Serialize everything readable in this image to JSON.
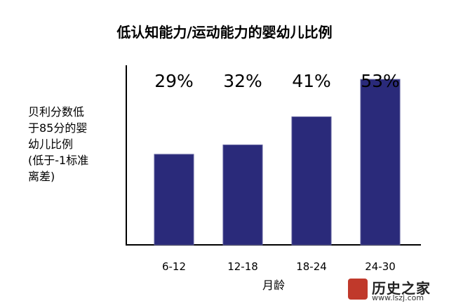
{
  "chart_data": {
    "type": "bar",
    "title": "低认知能力/运动能力的婴幼儿比例",
    "ylabel_lines": [
      "贝利分数低",
      "于85分的婴",
      "幼儿比例",
      "(低于-1标准",
      "离差)"
    ],
    "xlabel": "月龄",
    "categories": [
      "6-12",
      "12-18",
      "18-24",
      "24-30"
    ],
    "values": [
      29,
      32,
      41,
      53
    ],
    "value_labels": [
      "29%",
      "32%",
      "41%",
      "53%"
    ],
    "ylim": [
      0,
      100
    ],
    "bar_color": "#2a2a7a",
    "grid": false,
    "legend": "none"
  },
  "watermark": {
    "text": "历史之家",
    "url": "www.lszj.com"
  }
}
